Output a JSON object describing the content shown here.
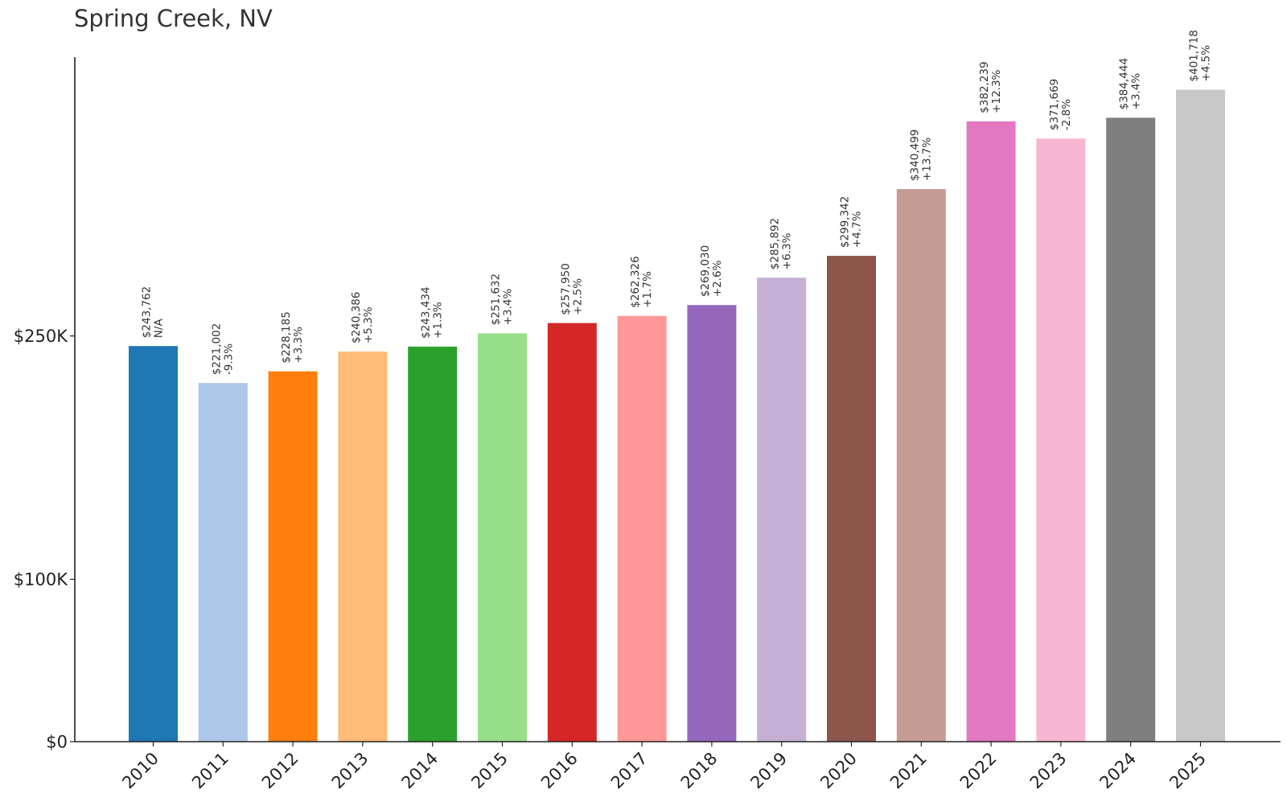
{
  "chart_data": {
    "type": "bar",
    "title": "Spring Creek, NV",
    "xlabel": "",
    "ylabel": "",
    "categories": [
      "2010",
      "2011",
      "2012",
      "2013",
      "2014",
      "2015",
      "2016",
      "2017",
      "2018",
      "2019",
      "2020",
      "2021",
      "2022",
      "2023",
      "2024",
      "2025"
    ],
    "values": [
      243762,
      221002,
      228185,
      240386,
      243434,
      251632,
      257950,
      262326,
      269030,
      285892,
      299342,
      340499,
      382239,
      371669,
      384444,
      401718
    ],
    "value_labels": [
      "$243,762",
      "$221,002",
      "$228,185",
      "$240,386",
      "$243,434",
      "$251,632",
      "$257,950",
      "$262,326",
      "$269,030",
      "$285,892",
      "$299,342",
      "$340,499",
      "$382,239",
      "$371,669",
      "$384,444",
      "$401,718"
    ],
    "change_labels": [
      "N/A",
      "-9.3%",
      "+3.3%",
      "+5.3%",
      "+1.3%",
      "+3.4%",
      "+2.5%",
      "+1.7%",
      "+2.6%",
      "+6.3%",
      "+4.7%",
      "+13.7%",
      "+12.3%",
      "-2.8%",
      "+3.4%",
      "+4.5%"
    ],
    "colors": [
      "#1f77b4",
      "#aec7e8",
      "#ff7f0e",
      "#ffbb78",
      "#2ca02c",
      "#98df8a",
      "#d62728",
      "#ff9896",
      "#9467bd",
      "#c5b0d5",
      "#8c564b",
      "#c49c94",
      "#e377c2",
      "#f7b6d2",
      "#7f7f7f",
      "#c7c7c7"
    ],
    "yticks": [
      0,
      100000,
      250000
    ],
    "ytick_labels": [
      "$0",
      "$100K",
      "$250K"
    ],
    "ylim": [
      0,
      421804
    ],
    "grid": false,
    "legend": "none"
  }
}
